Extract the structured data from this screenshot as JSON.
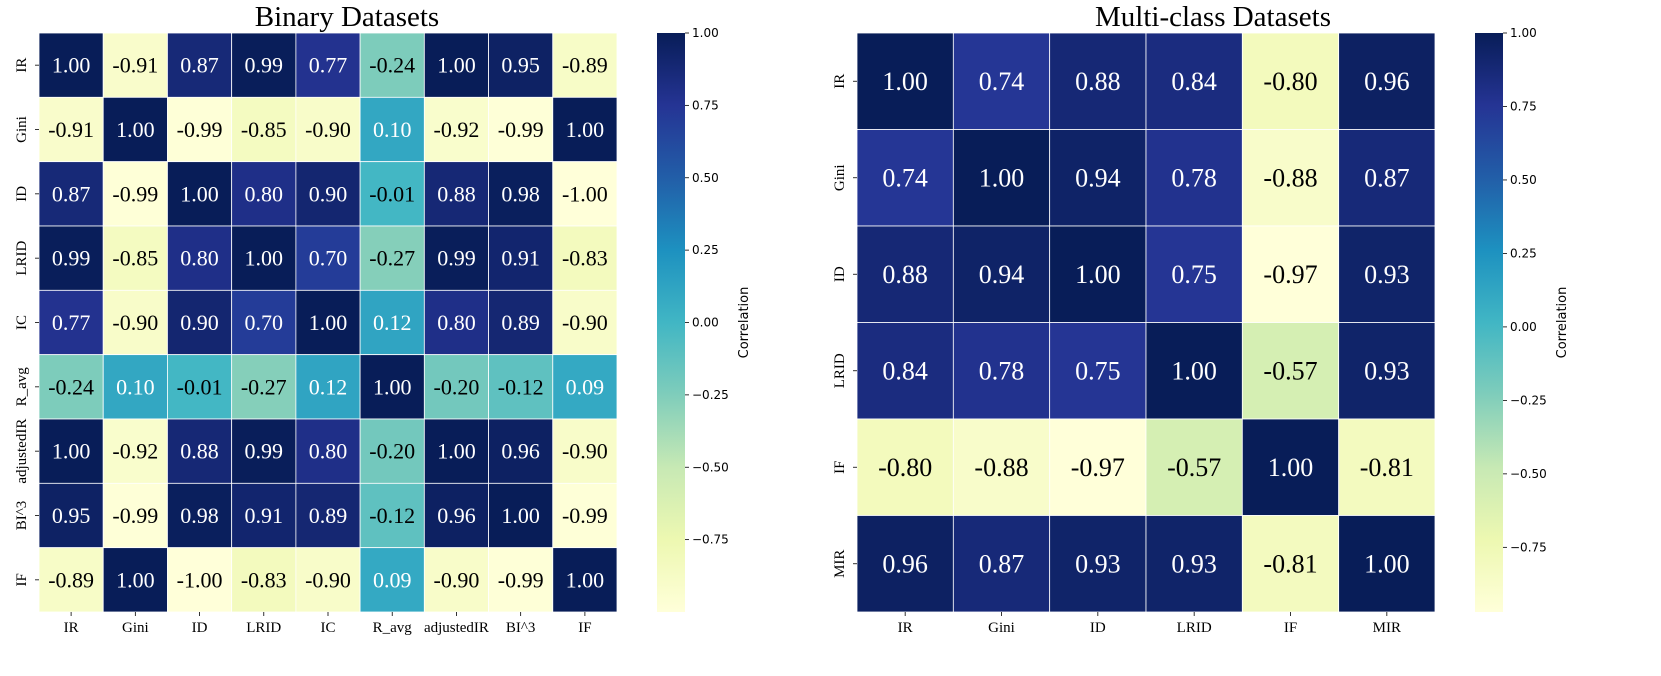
{
  "chart_data": [
    {
      "type": "heatmap",
      "title": "Binary Datasets",
      "row_labels": [
        "IR",
        "Gini",
        "ID",
        "LRID",
        "IC",
        "R_avg",
        "adjustedIR",
        "BI^3",
        "IF"
      ],
      "col_labels": [
        "IR",
        "Gini",
        "ID",
        "LRID",
        "IC",
        "R_avg",
        "adjustedIR",
        "BI^3",
        "IF"
      ],
      "values": [
        [
          1.0,
          -0.91,
          0.87,
          0.99,
          0.77,
          -0.24,
          1.0,
          0.95,
          -0.89
        ],
        [
          -0.91,
          1.0,
          -0.99,
          -0.85,
          -0.9,
          0.1,
          -0.92,
          -0.99,
          1.0
        ],
        [
          0.87,
          -0.99,
          1.0,
          0.8,
          0.9,
          -0.01,
          0.88,
          0.98,
          -1.0
        ],
        [
          0.99,
          -0.85,
          0.8,
          1.0,
          0.7,
          -0.27,
          0.99,
          0.91,
          -0.83
        ],
        [
          0.77,
          -0.9,
          0.9,
          0.7,
          1.0,
          0.12,
          0.8,
          0.89,
          -0.9
        ],
        [
          -0.24,
          0.1,
          -0.01,
          -0.27,
          0.12,
          1.0,
          -0.2,
          -0.12,
          0.09
        ],
        [
          1.0,
          -0.92,
          0.88,
          0.99,
          0.8,
          -0.2,
          1.0,
          0.96,
          -0.9
        ],
        [
          0.95,
          -0.99,
          0.98,
          0.91,
          0.89,
          -0.12,
          0.96,
          1.0,
          -0.99
        ],
        [
          -0.89,
          1.0,
          -1.0,
          -0.83,
          -0.9,
          0.09,
          -0.9,
          -0.99,
          1.0
        ]
      ],
      "colorbar": {
        "label": "Correlation",
        "ticks": [
          "1.00",
          "0.75",
          "0.50",
          "0.25",
          "0.00",
          "−0.25",
          "−0.50",
          "−0.75"
        ],
        "range": [
          -1.0,
          1.0
        ]
      },
      "colormap": "YlGnBu"
    },
    {
      "type": "heatmap",
      "title": "Multi-class Datasets",
      "row_labels": [
        "IR",
        "Gini",
        "ID",
        "LRID",
        "IF",
        "MIR"
      ],
      "col_labels": [
        "IR",
        "Gini",
        "ID",
        "LRID",
        "IF",
        "MIR"
      ],
      "values": [
        [
          1.0,
          0.74,
          0.88,
          0.84,
          -0.8,
          0.96
        ],
        [
          0.74,
          1.0,
          0.94,
          0.78,
          -0.88,
          0.87
        ],
        [
          0.88,
          0.94,
          1.0,
          0.75,
          -0.97,
          0.93
        ],
        [
          0.84,
          0.78,
          0.75,
          1.0,
          -0.57,
          0.93
        ],
        [
          -0.8,
          -0.88,
          -0.97,
          -0.57,
          1.0,
          -0.81
        ],
        [
          0.96,
          0.87,
          0.93,
          0.93,
          -0.81,
          1.0
        ]
      ],
      "colorbar": {
        "label": "Correlation",
        "ticks": [
          "1.00",
          "0.75",
          "0.50",
          "0.25",
          "0.00",
          "−0.25",
          "−0.50",
          "−0.75"
        ],
        "range": [
          -0.97,
          1.0
        ]
      },
      "colormap": "YlGnBu"
    }
  ]
}
